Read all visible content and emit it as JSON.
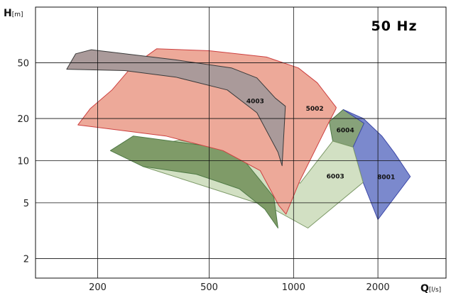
{
  "chart_data": {
    "type": "area",
    "title": "50 Hz",
    "xlabel": "Q",
    "xunit": "[l/s]",
    "ylabel": "H",
    "yunit": "[m]",
    "xscale": "log",
    "yscale": "log",
    "xlim": [
      120,
      3500
    ],
    "ylim": [
      1.45,
      125
    ],
    "xticks": [
      200,
      500,
      1000,
      2000
    ],
    "yticks": [
      2,
      5,
      10,
      20,
      50
    ],
    "grid": true,
    "legend": "none",
    "series": [
      {
        "name": "6004",
        "color": "#87a27a",
        "stroke": "#4f7a45",
        "points": [
          [
            1340,
            19.0
          ],
          [
            1505,
            23.2
          ],
          [
            1785,
            18.5
          ],
          [
            1630,
            12.5
          ],
          [
            1380,
            13.8
          ]
        ]
      },
      {
        "name": "8001",
        "color": "#7b89cd",
        "stroke": "#3d48a8",
        "points": [
          [
            1505,
            23.2
          ],
          [
            1775,
            20.0
          ],
          [
            2065,
            15.0
          ],
          [
            2290,
            11.4
          ],
          [
            2610,
            7.7
          ],
          [
            2000,
            3.8
          ],
          [
            1770,
            7.0
          ],
          [
            1630,
            12.5
          ],
          [
            1785,
            18.5
          ]
        ]
      },
      {
        "name": "6003",
        "color": "#d2e0c3",
        "stroke": "#7d9a68",
        "points": [
          [
            272,
            12.0
          ],
          [
            390,
            14.0
          ],
          [
            600,
            11.8
          ],
          [
            800,
            10.4
          ],
          [
            1055,
            6.9
          ],
          [
            1380,
            13.8
          ],
          [
            1630,
            12.5
          ],
          [
            1770,
            7.0
          ],
          [
            1125,
            3.3
          ],
          [
            825,
            4.65
          ],
          [
            290,
            9.1
          ]
        ]
      },
      {
        "name": "",
        "color": "#7f9b68",
        "stroke": "#4f7a45",
        "points": [
          [
            222,
            11.8
          ],
          [
            268,
            15.0
          ],
          [
            620,
            12.0
          ],
          [
            850,
            5.5
          ],
          [
            880,
            3.3
          ],
          [
            790,
            4.5
          ],
          [
            640,
            6.3
          ],
          [
            450,
            8.0
          ],
          [
            290,
            9.1
          ]
        ]
      },
      {
        "name": "5002",
        "color": "#eda999",
        "stroke": "#cd4040",
        "points": [
          [
            170,
            18.0
          ],
          [
            188,
            23.5
          ],
          [
            225,
            32.0
          ],
          [
            265,
            47.0
          ],
          [
            325,
            63.0
          ],
          [
            500,
            61.0
          ],
          [
            800,
            55.0
          ],
          [
            1040,
            46.0
          ],
          [
            1215,
            36.0
          ],
          [
            1420,
            24.0
          ],
          [
            1415,
            23.4
          ],
          [
            1340,
            19.0
          ],
          [
            1050,
            7.1
          ],
          [
            940,
            4.15
          ],
          [
            885,
            4.8
          ],
          [
            760,
            8.5
          ],
          [
            560,
            11.8
          ],
          [
            350,
            15.0
          ]
        ]
      },
      {
        "name": "4003",
        "color": "#aa9a9a",
        "stroke": "#3a3a3a",
        "points": [
          [
            155,
            45.0
          ],
          [
            167,
            58.0
          ],
          [
            190,
            62.0
          ],
          [
            380,
            52.5
          ],
          [
            600,
            46.0
          ],
          [
            740,
            39.0
          ],
          [
            860,
            28.0
          ],
          [
            935,
            24.5
          ],
          [
            910,
            9.2
          ],
          [
            880,
            11.5
          ],
          [
            740,
            22.0
          ],
          [
            580,
            32.0
          ],
          [
            380,
            39.5
          ],
          [
            250,
            44.0
          ]
        ]
      }
    ],
    "labels": [
      {
        "text": "4003",
        "x": 730,
        "y": 26.5
      },
      {
        "text": "5002",
        "x": 1190,
        "y": 23.5
      },
      {
        "text": "6004",
        "x": 1530,
        "y": 16.4
      },
      {
        "text": "6003",
        "x": 1410,
        "y": 7.7
      },
      {
        "text": "8001",
        "x": 2140,
        "y": 7.6
      }
    ]
  }
}
